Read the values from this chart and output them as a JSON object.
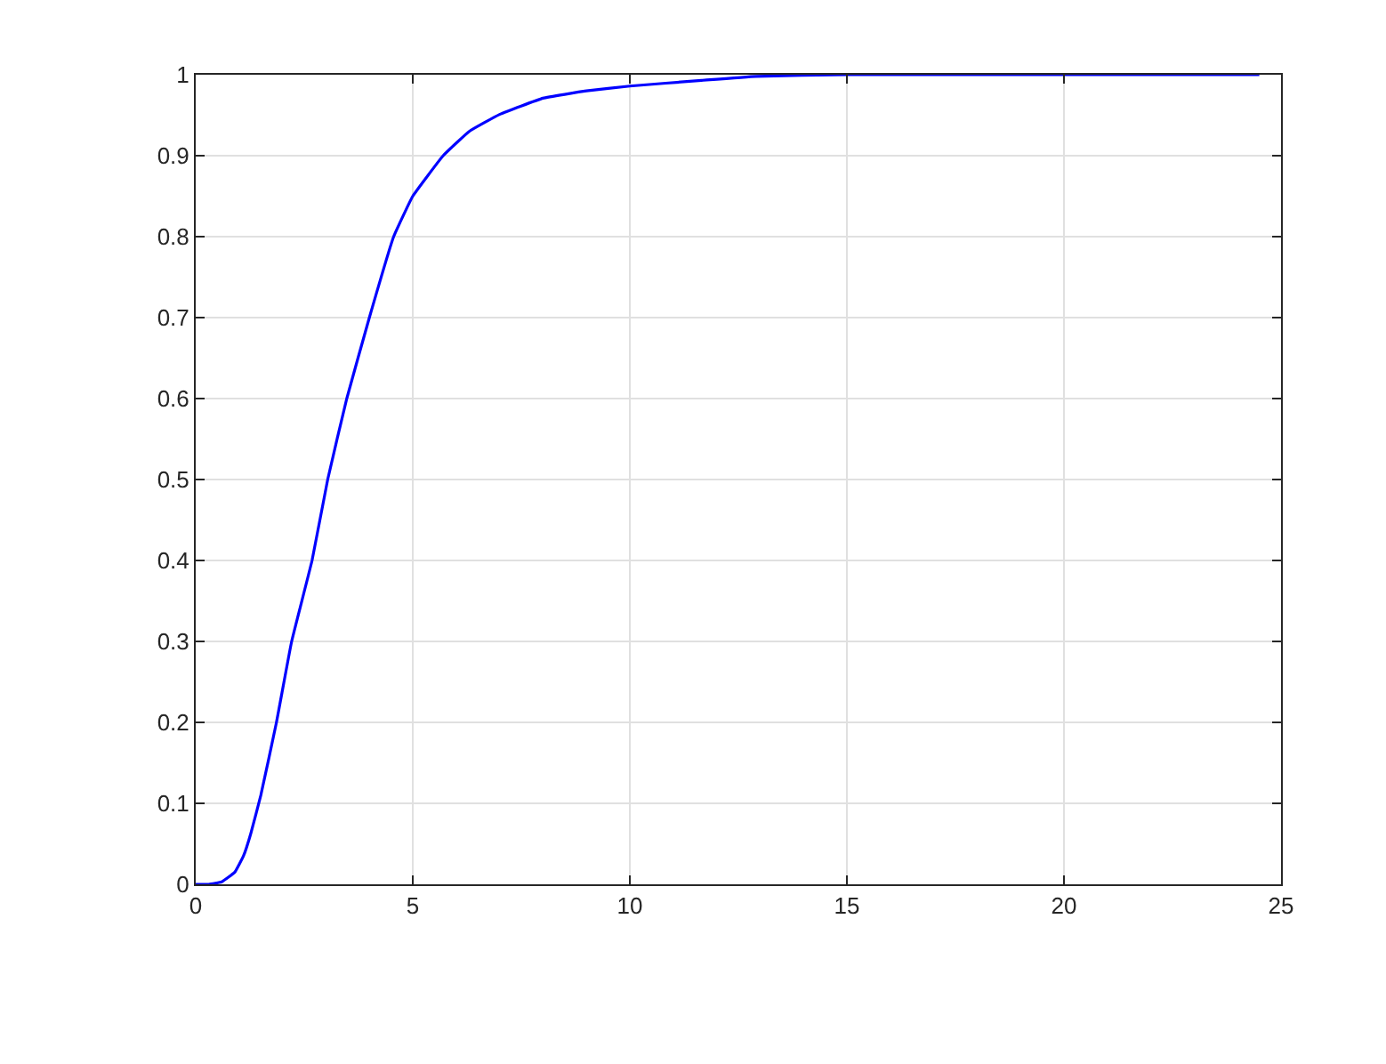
{
  "chart_data": {
    "type": "line",
    "grid": true,
    "xlim": [
      0,
      25
    ],
    "ylim": [
      0,
      1
    ],
    "xticks": [
      0,
      5,
      10,
      15,
      20,
      25
    ],
    "yticks": [
      0,
      0.1,
      0.2,
      0.3,
      0.4,
      0.5,
      0.6,
      0.7,
      0.8,
      0.9,
      1
    ],
    "series": [
      {
        "color": "#0000ff",
        "x": [
          0,
          0.3,
          0.6,
          0.9,
          1.1,
          1.27,
          1.5,
          1.86,
          2.21,
          2.68,
          3.04,
          3.48,
          4.0,
          4.56,
          5.0,
          5.7,
          6.3,
          7.0,
          8.0,
          9.0,
          10.0,
          11.65,
          12.9,
          15,
          20,
          24.5
        ],
        "values": [
          0,
          0,
          0.003,
          0.015,
          0.035,
          0.063,
          0.11,
          0.2,
          0.3,
          0.4,
          0.5,
          0.6,
          0.7,
          0.8,
          0.85,
          0.9,
          0.93,
          0.951,
          0.971,
          0.98,
          0.986,
          0.993,
          0.998,
          1,
          1,
          1
        ]
      }
    ]
  }
}
